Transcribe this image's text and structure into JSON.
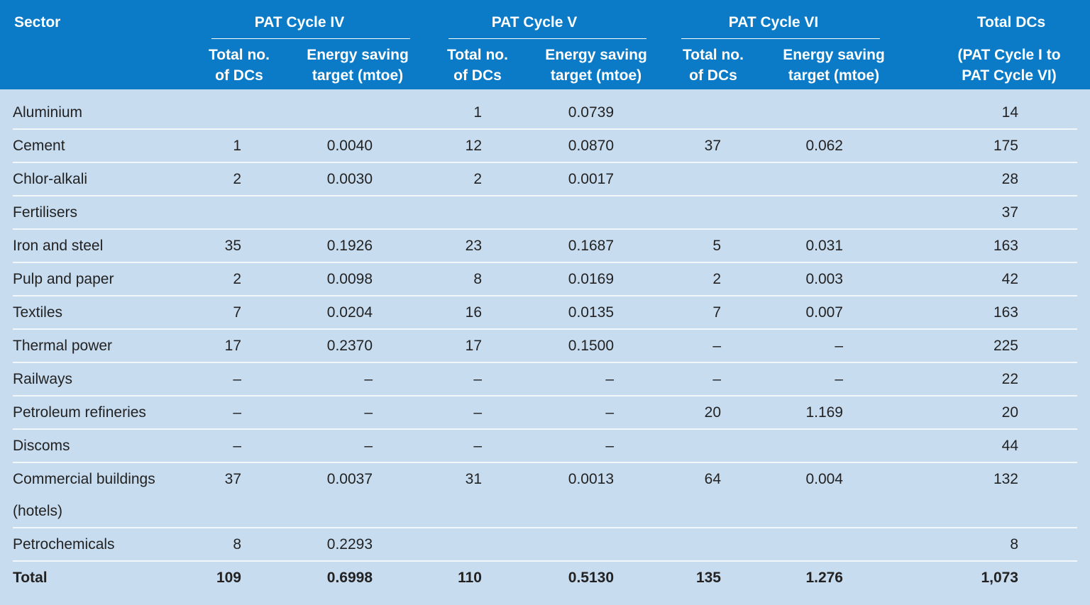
{
  "header": {
    "sector": "Sector",
    "groups": [
      {
        "title": "PAT Cycle IV",
        "columns": [
          [
            "Total no.",
            "of DCs"
          ],
          [
            "Energy saving",
            "target (mtoe)"
          ]
        ]
      },
      {
        "title": "PAT Cycle V",
        "columns": [
          [
            "Total no.",
            "of DCs"
          ],
          [
            "Energy saving",
            "target (mtoe)"
          ]
        ]
      },
      {
        "title": "PAT Cycle VI",
        "columns": [
          [
            "Total no.",
            "of DCs"
          ],
          [
            "Energy saving",
            "target (mtoe)"
          ]
        ]
      }
    ],
    "total": {
      "title": "Total DCs",
      "subtitle": [
        "(PAT Cycle I to",
        "PAT Cycle VI)"
      ]
    }
  },
  "table": {
    "rows": [
      [
        "Aluminium",
        null,
        null,
        "1",
        "0.0739",
        null,
        null,
        "14"
      ],
      [
        "Cement",
        "1",
        "0.0040",
        "12",
        "0.0870",
        "37",
        "0.062",
        "175"
      ],
      [
        "Chlor-alkali",
        "2",
        "0.0030",
        "2",
        "0.0017",
        null,
        null,
        "28"
      ],
      [
        "Fertilisers",
        null,
        null,
        null,
        null,
        null,
        null,
        "37"
      ],
      [
        "Iron and steel",
        "35",
        "0.1926",
        "23",
        "0.1687",
        "5",
        "0.031",
        "163"
      ],
      [
        "Pulp and paper",
        "2",
        "0.0098",
        "8",
        "0.0169",
        "2",
        "0.003",
        "42"
      ],
      [
        "Textiles",
        "7",
        "0.0204",
        "16",
        "0.0135",
        "7",
        "0.007",
        "163"
      ],
      [
        "Thermal power",
        "17",
        "0.2370",
        "17",
        "0.1500",
        "–",
        "–",
        "225"
      ],
      [
        "Railways",
        "–",
        "–",
        "–",
        "–",
        "–",
        "–",
        "22"
      ],
      [
        "Petroleum refineries",
        "–",
        "–",
        "–",
        "–",
        "20",
        "1.169",
        "20"
      ],
      [
        "Discoms",
        "–",
        "–",
        "–",
        "–",
        null,
        null,
        "44"
      ],
      [
        "Commercial buildings (hotels)",
        "37",
        "0.0037",
        "31",
        "0.0013",
        "64",
        "0.004",
        "132"
      ],
      [
        "Petrochemicals",
        "8",
        "0.2293",
        null,
        null,
        null,
        null,
        "8"
      ],
      [
        "Total",
        "109",
        "0.6998",
        "110",
        "0.5130",
        "135",
        "1.276",
        "1,073"
      ]
    ]
  }
}
